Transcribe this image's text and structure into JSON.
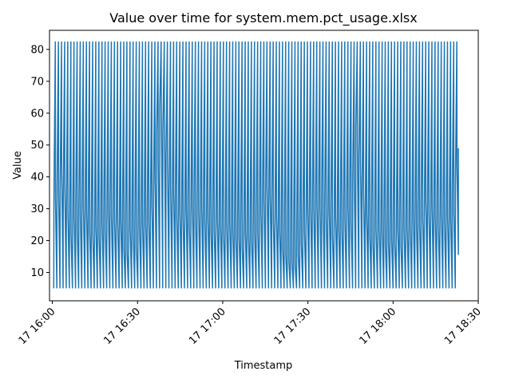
{
  "chart_data": {
    "type": "line",
    "title": "Value over time for system.mem.pct_usage.xlsx",
    "xlabel": "Timestamp",
    "ylabel": "Value",
    "xlim": [
      "2024-01-17 15:59:00",
      "2024-01-17 18:30:00"
    ],
    "ylim": [
      1.1,
      86.0
    ],
    "x_ticks": [
      "17 16:00",
      "17 16:30",
      "17 17:00",
      "17 17:30",
      "17 18:00",
      "17 18:30"
    ],
    "x_tick_values": [
      "2024-01-17 16:00:00",
      "2024-01-17 16:30:00",
      "2024-01-17 17:00:00",
      "2024-01-17 17:30:00",
      "2024-01-17 18:00:00",
      "2024-01-17 18:30:00"
    ],
    "y_ticks": [
      10,
      20,
      30,
      40,
      50,
      60,
      70,
      80
    ],
    "grid": false,
    "line_color": "#1f77b4",
    "series": [
      {
        "x_start": "2024-01-17 16:00:30",
        "x_end": "2024-01-17 18:23:00",
        "oscillation_min": 5,
        "oscillation_max": 82.5,
        "approx_cycles": 130,
        "trend": [
          [
            "2024-01-17 16:00:30",
            33
          ],
          [
            "2024-01-17 16:03:00",
            40
          ],
          [
            "2024-01-17 16:06:00",
            22
          ],
          [
            "2024-01-17 16:10:00",
            30
          ],
          [
            "2024-01-17 16:15:00",
            20
          ],
          [
            "2024-01-17 16:20:00",
            28
          ],
          [
            "2024-01-17 16:25:00",
            20
          ],
          [
            "2024-01-17 16:30:00",
            22
          ],
          [
            "2024-01-17 16:35:00",
            30
          ],
          [
            "2024-01-17 16:38:00",
            65
          ],
          [
            "2024-01-17 16:41:00",
            35
          ],
          [
            "2024-01-17 16:45:00",
            25
          ],
          [
            "2024-01-17 16:50:00",
            30
          ],
          [
            "2024-01-17 16:55:00",
            25
          ],
          [
            "2024-01-17 17:00:00",
            22
          ],
          [
            "2024-01-17 17:05:00",
            22
          ],
          [
            "2024-01-17 17:10:00",
            20
          ],
          [
            "2024-01-17 17:15:00",
            35
          ],
          [
            "2024-01-17 17:20:00",
            20
          ],
          [
            "2024-01-17 17:25:00",
            15
          ],
          [
            "2024-01-17 17:30:00",
            28
          ],
          [
            "2024-01-17 17:35:00",
            30
          ],
          [
            "2024-01-17 17:40:00",
            22
          ],
          [
            "2024-01-17 17:45:00",
            30
          ],
          [
            "2024-01-17 17:47:00",
            55
          ],
          [
            "2024-01-17 17:50:00",
            25
          ],
          [
            "2024-01-17 17:55:00",
            20
          ],
          [
            "2024-01-17 18:00:00",
            22
          ],
          [
            "2024-01-17 18:05:00",
            20
          ],
          [
            "2024-01-17 18:10:00",
            30
          ],
          [
            "2024-01-17 18:15:00",
            25
          ],
          [
            "2024-01-17 18:20:00",
            25
          ],
          [
            "2024-01-17 18:23:00",
            49
          ]
        ]
      }
    ]
  }
}
